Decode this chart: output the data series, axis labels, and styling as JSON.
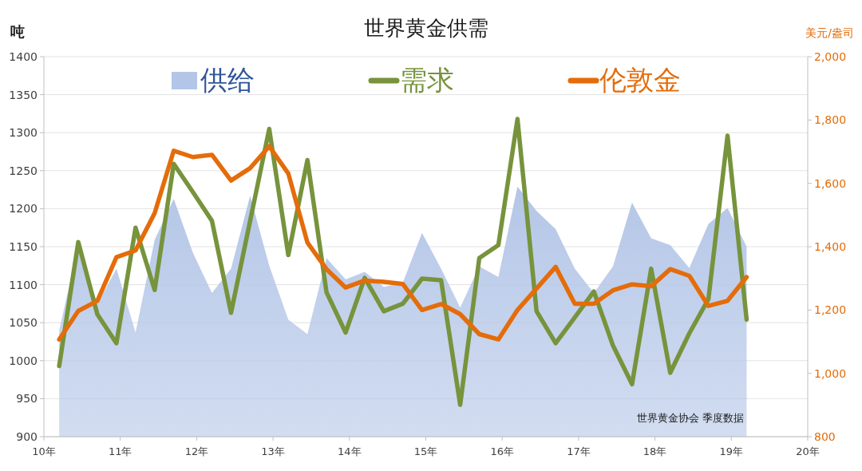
{
  "chart_data": {
    "type": "line",
    "title": "世界黄金供需",
    "ylabel": "吨",
    "y2label": "美元/盎司",
    "x": [
      10.2,
      10.45,
      10.7,
      10.95,
      11.2,
      11.45,
      11.7,
      11.95,
      12.2,
      12.45,
      12.7,
      12.95,
      13.2,
      13.45,
      13.7,
      13.95,
      14.2,
      14.45,
      14.7,
      14.95,
      15.2,
      15.45,
      15.7,
      15.95,
      16.2,
      16.45,
      16.7,
      16.95,
      17.2,
      17.45,
      17.7,
      17.95,
      18.2,
      18.45,
      18.7,
      18.95,
      19.2
    ],
    "series": [
      {
        "name": "供给",
        "type": "area",
        "color": "#b4c6e7",
        "values": [
          1040,
          1152,
          1075,
          1121,
          1037,
          1159,
          1213,
          1142,
          1089,
          1121,
          1217,
          1125,
          1054,
          1035,
          1135,
          1107,
          1117,
          1097,
          1103,
          1168,
          1121,
          1070,
          1124,
          1110,
          1229,
          1197,
          1173,
          1121,
          1089,
          1124,
          1208,
          1161,
          1152,
          1122,
          1180,
          1201,
          1150
        ]
      },
      {
        "name": "需求",
        "color": "#77933c",
        "values": [
          993,
          1156,
          1061,
          1023,
          1175,
          1093,
          1259,
          1222,
          1184,
          1063,
          1184,
          1305,
          1139,
          1264,
          1090,
          1037,
          1109,
          1065,
          1075,
          1108,
          1106,
          942,
          1135,
          1152,
          1318,
          1065,
          1023,
          1057,
          1091,
          1020,
          969,
          1121,
          984,
          1036,
          1081,
          1296,
          1054
        ]
      },
      {
        "name": "伦敦金",
        "type": "line",
        "axis": "y2",
        "color": "#e46c0a",
        "values": [
          1107,
          1197,
          1229,
          1367,
          1388,
          1506,
          1703,
          1683,
          1690,
          1609,
          1648,
          1717,
          1631,
          1413,
          1329,
          1271,
          1293,
          1289,
          1282,
          1200,
          1219,
          1187,
          1124,
          1107,
          1200,
          1268,
          1336,
          1220,
          1220,
          1262,
          1281,
          1275,
          1329,
          1308,
          1213,
          1229,
          1304
        ]
      }
    ],
    "xlim": [
      10,
      20
    ],
    "xticks": [
      {
        "value": 10,
        "label": "10年"
      },
      {
        "value": 11,
        "label": "11年"
      },
      {
        "value": 12,
        "label": "12年"
      },
      {
        "value": 13,
        "label": "13年"
      },
      {
        "value": 14,
        "label": "14年"
      },
      {
        "value": 15,
        "label": "15年"
      },
      {
        "value": 16,
        "label": "16年"
      },
      {
        "value": 17,
        "label": "17年"
      },
      {
        "value": 18,
        "label": "18年"
      },
      {
        "value": 19,
        "label": "19年"
      },
      {
        "value": 20,
        "label": "20年"
      }
    ],
    "ylim": [
      900,
      1400
    ],
    "yticks": [
      900,
      950,
      1000,
      1050,
      1100,
      1150,
      1200,
      1250,
      1300,
      1350,
      1400
    ],
    "y2lim": [
      800,
      2000
    ],
    "y2ticks": [
      {
        "value": 800,
        "label": "800"
      },
      {
        "value": 1000,
        "label": "1,000"
      },
      {
        "value": 1200,
        "label": "1,200"
      },
      {
        "value": 1400,
        "label": "1,400"
      },
      {
        "value": 1600,
        "label": "1,600"
      },
      {
        "value": 1800,
        "label": "1,800"
      },
      {
        "value": 2000,
        "label": "2,000"
      }
    ],
    "grid": "y",
    "legend": "top",
    "annotations": [
      "世界黄金协会 季度数据"
    ]
  }
}
